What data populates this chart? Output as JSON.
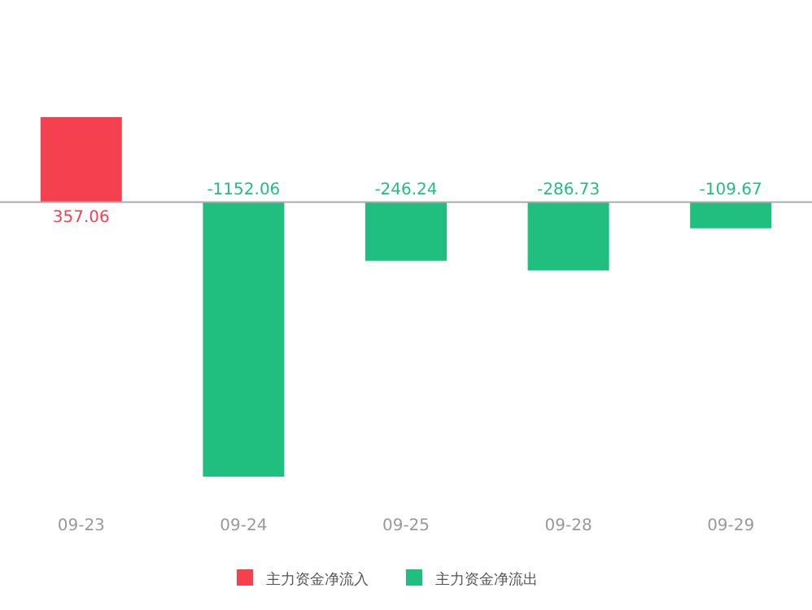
{
  "chart_data": {
    "type": "bar",
    "categories": [
      "09-23",
      "09-24",
      "09-25",
      "09-28",
      "09-29"
    ],
    "series": [
      {
        "name": "主力资金净流入",
        "color": "#f5404f",
        "values": [
          357.06,
          null,
          null,
          null,
          null
        ]
      },
      {
        "name": "主力资金净流出",
        "color": "#20bf80",
        "values": [
          null,
          -1152.06,
          -246.24,
          -286.73,
          -109.67
        ]
      }
    ],
    "data_labels": true,
    "legend": "bottom",
    "grid": false
  }
}
